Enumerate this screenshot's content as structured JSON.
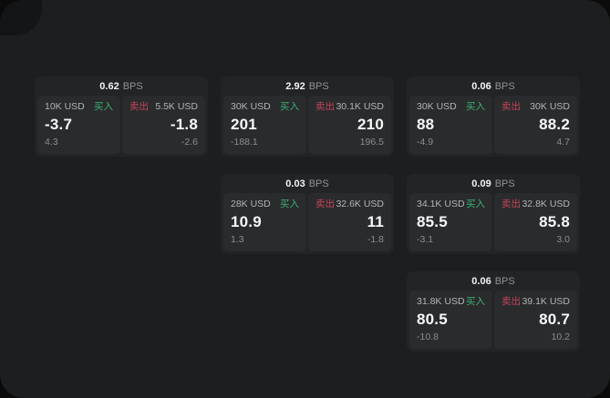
{
  "labels": {
    "bps": "BPS",
    "buy": "买入",
    "sell": "卖出"
  },
  "colors": {
    "buy": "#3bb273",
    "sell": "#c2455a",
    "card": "#232425",
    "panel": "#2a2b2d",
    "page": "#1d1e1f"
  },
  "cards": [
    {
      "bps": "0.62",
      "buy": {
        "size": "10K USD",
        "price": "-3.7",
        "delta": "4.3"
      },
      "sell": {
        "size": "5.5K USD",
        "price": "-1.8",
        "delta": "-2.6"
      }
    },
    {
      "bps": "2.92",
      "buy": {
        "size": "30K USD",
        "price": "201",
        "delta": "-188.1"
      },
      "sell": {
        "size": "30.1K USD",
        "price": "210",
        "delta": "196.5"
      }
    },
    {
      "bps": "0.06",
      "buy": {
        "size": "30K USD",
        "price": "88",
        "delta": "-4.9"
      },
      "sell": {
        "size": "30K USD",
        "price": "88.2",
        "delta": "4.7"
      }
    },
    {
      "bps": "0.03",
      "buy": {
        "size": "28K USD",
        "price": "10.9",
        "delta": "1.3"
      },
      "sell": {
        "size": "32.6K USD",
        "price": "11",
        "delta": "-1.8"
      }
    },
    {
      "bps": "0.09",
      "buy": {
        "size": "34.1K USD",
        "price": "85.5",
        "delta": "-3.1"
      },
      "sell": {
        "size": "32.8K USD",
        "price": "85.8",
        "delta": "3.0"
      }
    },
    {
      "bps": "0.06",
      "buy": {
        "size": "31.8K USD",
        "price": "80.5",
        "delta": "-10.8"
      },
      "sell": {
        "size": "39.1K USD",
        "price": "80.7",
        "delta": "10.2"
      }
    }
  ]
}
